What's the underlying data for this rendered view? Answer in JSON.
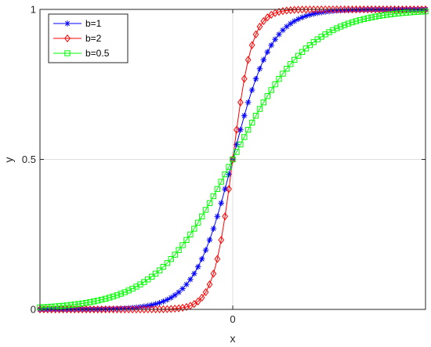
{
  "chart_data": {
    "type": "line",
    "title": "",
    "xlabel": "x",
    "ylabel": "y",
    "xlim": [
      -10,
      10
    ],
    "ylim": [
      0,
      1
    ],
    "xticks": [
      {
        "value": 0,
        "label": "0"
      }
    ],
    "yticks": [
      {
        "value": 0,
        "label": "0"
      },
      {
        "value": 0.5,
        "label": "0.5"
      },
      {
        "value": 1,
        "label": "1"
      }
    ],
    "grid": true,
    "legend_position": "top-left",
    "function": "y = 1 / (1 + exp(-b*x))",
    "x": [
      -10.0,
      -9.8,
      -9.6,
      -9.4,
      -9.2,
      -9.0,
      -8.8,
      -8.6,
      -8.4,
      -8.2,
      -8.0,
      -7.8,
      -7.6,
      -7.4,
      -7.2,
      -7.0,
      -6.8,
      -6.6,
      -6.4,
      -6.2,
      -6.0,
      -5.8,
      -5.6,
      -5.4,
      -5.2,
      -5.0,
      -4.8,
      -4.6,
      -4.4,
      -4.2,
      -4.0,
      -3.8,
      -3.6,
      -3.4,
      -3.2,
      -3.0,
      -2.8,
      -2.6,
      -2.4,
      -2.2,
      -2.0,
      -1.8,
      -1.6,
      -1.4,
      -1.2,
      -1.0,
      -0.8,
      -0.6,
      -0.4,
      -0.2,
      0.0,
      0.2,
      0.4,
      0.6,
      0.8,
      1.0,
      1.2,
      1.4,
      1.6,
      1.8,
      2.0,
      2.2,
      2.4,
      2.6,
      2.8,
      3.0,
      3.2,
      3.4,
      3.6,
      3.8,
      4.0,
      4.2,
      4.4,
      4.6,
      4.8,
      5.0,
      5.2,
      5.4,
      5.6,
      5.8,
      6.0,
      6.2,
      6.4,
      6.6,
      6.8,
      7.0,
      7.2,
      7.4,
      7.6,
      7.8,
      8.0,
      8.2,
      8.4,
      8.6,
      8.8,
      9.0,
      9.2,
      9.4,
      9.6,
      9.8,
      10.0
    ],
    "series": [
      {
        "name": "b=1",
        "b": 1,
        "color": "#0000ff",
        "marker": "asterisk",
        "values": [
          0.0,
          0.0001,
          0.0001,
          0.0001,
          0.0001,
          0.0001,
          0.0002,
          0.0002,
          0.0002,
          0.0003,
          0.0003,
          0.0004,
          0.0005,
          0.0006,
          0.0007,
          0.0009,
          0.0011,
          0.0014,
          0.0017,
          0.002,
          0.0025,
          0.003,
          0.0037,
          0.0045,
          0.0055,
          0.0067,
          0.0082,
          0.01,
          0.0121,
          0.0148,
          0.018,
          0.0219,
          0.0266,
          0.0323,
          0.0392,
          0.0474,
          0.0573,
          0.0691,
          0.0832,
          0.0998,
          0.1192,
          0.1419,
          0.168,
          0.1978,
          0.2315,
          0.2689,
          0.31,
          0.3543,
          0.4013,
          0.4502,
          0.5,
          0.5498,
          0.5987,
          0.6457,
          0.69,
          0.7311,
          0.7685,
          0.8022,
          0.832,
          0.8581,
          0.8808,
          0.9002,
          0.9168,
          0.9309,
          0.9427,
          0.9526,
          0.9608,
          0.9677,
          0.9734,
          0.9781,
          0.982,
          0.9852,
          0.9879,
          0.99,
          0.9918,
          0.9933,
          0.9945,
          0.9955,
          0.9963,
          0.997,
          0.9975,
          0.998,
          0.9983,
          0.9986,
          0.9989,
          0.9991,
          0.9993,
          0.9994,
          0.9995,
          0.9996,
          0.9997,
          0.9997,
          0.9998,
          0.9998,
          0.9998,
          0.9999,
          0.9999,
          0.9999,
          0.9999,
          0.9999,
          1.0
        ]
      },
      {
        "name": "b=2",
        "b": 2,
        "color": "#ff0000",
        "marker": "diamond",
        "values": [
          0.0,
          0.0,
          0.0,
          0.0,
          0.0,
          0.0,
          0.0,
          0.0,
          0.0,
          0.0,
          0.0,
          0.0,
          0.0,
          0.0,
          0.0,
          0.0,
          0.0,
          0.0,
          0.0,
          0.0,
          0.0,
          0.0,
          0.0,
          0.0,
          0.0,
          0.0,
          0.0001,
          0.0001,
          0.0002,
          0.0002,
          0.0003,
          0.0005,
          0.0007,
          0.0011,
          0.0017,
          0.0025,
          0.0037,
          0.0055,
          0.0082,
          0.0121,
          0.018,
          0.0266,
          0.0392,
          0.0573,
          0.0832,
          0.1192,
          0.168,
          0.2315,
          0.31,
          0.4013,
          0.5,
          0.5987,
          0.69,
          0.7685,
          0.832,
          0.8808,
          0.9168,
          0.9427,
          0.9608,
          0.9734,
          0.982,
          0.9879,
          0.9918,
          0.9945,
          0.9963,
          0.9975,
          0.9983,
          0.9989,
          0.9993,
          0.9995,
          0.9997,
          0.9998,
          0.9998,
          0.9999,
          0.9999,
          1.0,
          1.0,
          1.0,
          1.0,
          1.0,
          1.0,
          1.0,
          1.0,
          1.0,
          1.0,
          1.0,
          1.0,
          1.0,
          1.0,
          1.0,
          1.0,
          1.0,
          1.0,
          1.0,
          1.0,
          1.0,
          1.0,
          1.0,
          1.0,
          1.0,
          1.0
        ]
      },
      {
        "name": "b=0.5",
        "b": 0.5,
        "color": "#00ff00",
        "marker": "square",
        "values": [
          0.0067,
          0.0074,
          0.0082,
          0.009,
          0.01,
          0.011,
          0.0121,
          0.0134,
          0.0148,
          0.0163,
          0.018,
          0.0198,
          0.0219,
          0.0241,
          0.0266,
          0.0293,
          0.0323,
          0.0356,
          0.0392,
          0.0431,
          0.0474,
          0.0522,
          0.0573,
          0.063,
          0.0691,
          0.0759,
          0.0832,
          0.0911,
          0.0998,
          0.1091,
          0.1192,
          0.1301,
          0.1419,
          0.1545,
          0.168,
          0.1824,
          0.1978,
          0.2142,
          0.2315,
          0.2497,
          0.2689,
          0.2891,
          0.31,
          0.3318,
          0.3543,
          0.3775,
          0.4013,
          0.4256,
          0.4502,
          0.475,
          0.5,
          0.525,
          0.5498,
          0.5744,
          0.5987,
          0.6225,
          0.6457,
          0.6682,
          0.69,
          0.7109,
          0.7311,
          0.7503,
          0.7685,
          0.7858,
          0.8022,
          0.8176,
          0.832,
          0.8455,
          0.8581,
          0.8699,
          0.8808,
          0.8909,
          0.9002,
          0.9089,
          0.9168,
          0.9241,
          0.9309,
          0.937,
          0.9427,
          0.9478,
          0.9526,
          0.9569,
          0.9608,
          0.9644,
          0.9677,
          0.9707,
          0.9734,
          0.9759,
          0.9781,
          0.9802,
          0.982,
          0.9837,
          0.9852,
          0.9866,
          0.9879,
          0.989,
          0.99,
          0.991,
          0.9918,
          0.9926,
          0.9933
        ]
      }
    ]
  }
}
